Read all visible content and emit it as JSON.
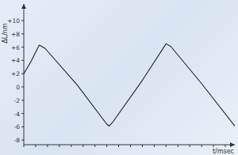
{
  "chart_data": {
    "type": "line",
    "x_label": "t/msec",
    "y_label": "ΔL/nm",
    "x": [
      0,
      0.6,
      1.3,
      1.8,
      4.5,
      7.0,
      7.2,
      7.5,
      10,
      12.0,
      12.4,
      15,
      17.8
    ],
    "values": [
      2.0,
      3.8,
      6.3,
      5.8,
      0.3,
      -5.6,
      -5.9,
      -5.3,
      1.0,
      6.5,
      6.1,
      0.5,
      -5.9
    ],
    "color": "#222222",
    "xlim": [
      0,
      17.8
    ],
    "xticks": [
      0,
      1,
      2,
      3,
      4,
      5,
      6,
      7,
      8,
      9,
      10,
      11,
      12,
      13,
      14,
      15,
      16,
      17
    ],
    "ylim": [
      -8.7,
      12.5
    ],
    "yticks": [
      -8,
      {
        "value": -6,
        "label": "-6"
      },
      {
        "value": -4,
        "label": "-4"
      },
      {
        "value": -2,
        "label": "-2"
      },
      0,
      {
        "value": 2,
        "label": "+2"
      },
      {
        "value": 4,
        "label": "+4"
      },
      {
        "value": 6,
        "label": "+6"
      },
      {
        "value": 8,
        "label": "+8"
      },
      {
        "value": 10,
        "label": "+10"
      }
    ],
    "tick_labels": "y",
    "grid": false
  }
}
